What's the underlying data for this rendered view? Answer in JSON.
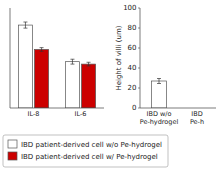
{
  "chart_data": [
    {
      "type": "bar",
      "categories": [
        "IL-8",
        "IL-6"
      ],
      "series": [
        {
          "name": "IBD patient-derived cell w/o Pe-hydrogel",
          "color": "#ffffff",
          "values": [
            68,
            38
          ],
          "errors": [
            2.5,
            2.0
          ]
        },
        {
          "name": "IBD patient-derived cell w/ Pe-hydrogel",
          "color": "#cc0000",
          "values": [
            48,
            36
          ],
          "errors": [
            1.5,
            1.5
          ]
        }
      ],
      "ylim": [
        0,
        82
      ],
      "tick_labels": "x",
      "grid": false,
      "legend": "bottom"
    },
    {
      "type": "bar",
      "categories": [
        "IBD w/o\nPe-hydrogel",
        "IBD\nPe-h"
      ],
      "values": [
        27,
        null
      ],
      "errors": [
        2.5,
        null
      ],
      "color": "#ffffff",
      "y_label": "Height of villi (um)",
      "ylim": [
        0,
        100
      ],
      "yticks": [
        0,
        20,
        40,
        60,
        80,
        100
      ],
      "grid": false
    }
  ]
}
